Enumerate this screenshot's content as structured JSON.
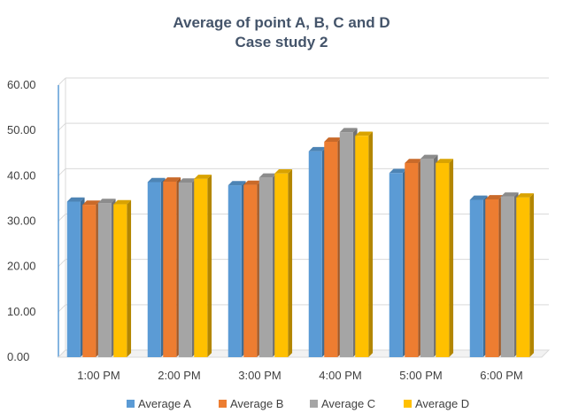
{
  "chart_data": {
    "type": "bar",
    "title": "Average of point A, B, C and D",
    "subtitle": "Case study 2",
    "categories": [
      "1:00 PM",
      "2:00 PM",
      "3:00 PM",
      "4:00 PM",
      "5:00 PM",
      "6:00 PM"
    ],
    "series": [
      {
        "name": "Average A",
        "color": "#5b9bd5",
        "values": [
          34.3,
          38.6,
          37.9,
          45.4,
          40.6,
          34.7
        ]
      },
      {
        "name": "Average B",
        "color": "#ed7d31",
        "values": [
          33.6,
          38.7,
          38.0,
          47.5,
          42.8,
          34.8
        ]
      },
      {
        "name": "Average C",
        "color": "#a5a5a5",
        "values": [
          34.0,
          38.5,
          39.6,
          49.6,
          43.7,
          35.4
        ]
      },
      {
        "name": "Average D",
        "color": "#ffc000",
        "values": [
          33.7,
          39.3,
          40.5,
          48.8,
          42.8,
          35.2
        ]
      }
    ],
    "ylim": [
      0,
      60
    ],
    "yticks": [
      "0.00",
      "10.00",
      "20.00",
      "30.00",
      "40.00",
      "50.00",
      "60.00"
    ],
    "grid": true,
    "legend": "bottom"
  }
}
